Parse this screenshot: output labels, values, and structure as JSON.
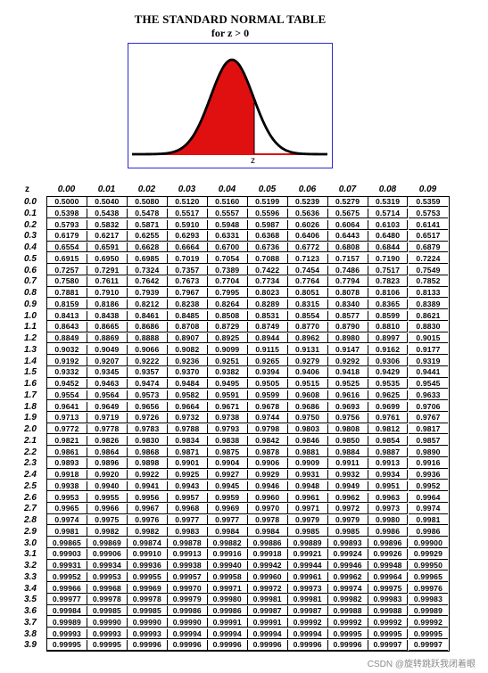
{
  "title": "THE STANDARD NORMAL TABLE",
  "subtitle": "for z > 0",
  "figure": {
    "axis_marker": "z",
    "shaded_color": "#e01010",
    "curve_color": "#000000",
    "border_color": "#2a2ad0"
  },
  "table": {
    "z_header": "z",
    "columns": [
      "0.00",
      "0.01",
      "0.02",
      "0.03",
      "0.04",
      "0.05",
      "0.06",
      "0.07",
      "0.08",
      "0.09"
    ],
    "rows": [
      {
        "z": "0.0",
        "values": [
          "0.5000",
          "0.5040",
          "0.5080",
          "0.5120",
          "0.5160",
          "0.5199",
          "0.5239",
          "0.5279",
          "0.5319",
          "0.5359"
        ]
      },
      {
        "z": "0.1",
        "values": [
          "0.5398",
          "0.5438",
          "0.5478",
          "0.5517",
          "0.5557",
          "0.5596",
          "0.5636",
          "0.5675",
          "0.5714",
          "0.5753"
        ]
      },
      {
        "z": "0.2",
        "values": [
          "0.5793",
          "0.5832",
          "0.5871",
          "0.5910",
          "0.5948",
          "0.5987",
          "0.6026",
          "0.6064",
          "0.6103",
          "0.6141"
        ]
      },
      {
        "z": "0.3",
        "values": [
          "0.6179",
          "0.6217",
          "0.6255",
          "0.6293",
          "0.6331",
          "0.6368",
          "0.6406",
          "0.6443",
          "0.6480",
          "0.6517"
        ]
      },
      {
        "z": "0.4",
        "values": [
          "0.6554",
          "0.6591",
          "0.6628",
          "0.6664",
          "0.6700",
          "0.6736",
          "0.6772",
          "0.6808",
          "0.6844",
          "0.6879"
        ]
      },
      {
        "z": "0.5",
        "values": [
          "0.6915",
          "0.6950",
          "0.6985",
          "0.7019",
          "0.7054",
          "0.7088",
          "0.7123",
          "0.7157",
          "0.7190",
          "0.7224"
        ]
      },
      {
        "z": "0.6",
        "values": [
          "0.7257",
          "0.7291",
          "0.7324",
          "0.7357",
          "0.7389",
          "0.7422",
          "0.7454",
          "0.7486",
          "0.7517",
          "0.7549"
        ]
      },
      {
        "z": "0.7",
        "values": [
          "0.7580",
          "0.7611",
          "0.7642",
          "0.7673",
          "0.7704",
          "0.7734",
          "0.7764",
          "0.7794",
          "0.7823",
          "0.7852"
        ]
      },
      {
        "z": "0.8",
        "values": [
          "0.7881",
          "0.7910",
          "0.7939",
          "0.7967",
          "0.7995",
          "0.8023",
          "0.8051",
          "0.8078",
          "0.8106",
          "0.8133"
        ]
      },
      {
        "z": "0.9",
        "values": [
          "0.8159",
          "0.8186",
          "0.8212",
          "0.8238",
          "0.8264",
          "0.8289",
          "0.8315",
          "0.8340",
          "0.8365",
          "0.8389"
        ]
      },
      {
        "z": "1.0",
        "values": [
          "0.8413",
          "0.8438",
          "0.8461",
          "0.8485",
          "0.8508",
          "0.8531",
          "0.8554",
          "0.8577",
          "0.8599",
          "0.8621"
        ]
      },
      {
        "z": "1.1",
        "values": [
          "0.8643",
          "0.8665",
          "0.8686",
          "0.8708",
          "0.8729",
          "0.8749",
          "0.8770",
          "0.8790",
          "0.8810",
          "0.8830"
        ]
      },
      {
        "z": "1.2",
        "values": [
          "0.8849",
          "0.8869",
          "0.8888",
          "0.8907",
          "0.8925",
          "0.8944",
          "0.8962",
          "0.8980",
          "0.8997",
          "0.9015"
        ]
      },
      {
        "z": "1.3",
        "values": [
          "0.9032",
          "0.9049",
          "0.9066",
          "0.9082",
          "0.9099",
          "0.9115",
          "0.9131",
          "0.9147",
          "0.9162",
          "0.9177"
        ]
      },
      {
        "z": "1.4",
        "values": [
          "0.9192",
          "0.9207",
          "0.9222",
          "0.9236",
          "0.9251",
          "0.9265",
          "0.9279",
          "0.9292",
          "0.9306",
          "0.9319"
        ]
      },
      {
        "z": "1.5",
        "values": [
          "0.9332",
          "0.9345",
          "0.9357",
          "0.9370",
          "0.9382",
          "0.9394",
          "0.9406",
          "0.9418",
          "0.9429",
          "0.9441"
        ]
      },
      {
        "z": "1.6",
        "values": [
          "0.9452",
          "0.9463",
          "0.9474",
          "0.9484",
          "0.9495",
          "0.9505",
          "0.9515",
          "0.9525",
          "0.9535",
          "0.9545"
        ]
      },
      {
        "z": "1.7",
        "values": [
          "0.9554",
          "0.9564",
          "0.9573",
          "0.9582",
          "0.9591",
          "0.9599",
          "0.9608",
          "0.9616",
          "0.9625",
          "0.9633"
        ]
      },
      {
        "z": "1.8",
        "values": [
          "0.9641",
          "0.9649",
          "0.9656",
          "0.9664",
          "0.9671",
          "0.9678",
          "0.9686",
          "0.9693",
          "0.9699",
          "0.9706"
        ]
      },
      {
        "z": "1.9",
        "values": [
          "0.9713",
          "0.9719",
          "0.9726",
          "0.9732",
          "0.9738",
          "0.9744",
          "0.9750",
          "0.9756",
          "0.9761",
          "0.9767"
        ]
      },
      {
        "z": "2.0",
        "values": [
          "0.9772",
          "0.9778",
          "0.9783",
          "0.9788",
          "0.9793",
          "0.9798",
          "0.9803",
          "0.9808",
          "0.9812",
          "0.9817"
        ]
      },
      {
        "z": "2.1",
        "values": [
          "0.9821",
          "0.9826",
          "0.9830",
          "0.9834",
          "0.9838",
          "0.9842",
          "0.9846",
          "0.9850",
          "0.9854",
          "0.9857"
        ]
      },
      {
        "z": "2.2",
        "values": [
          "0.9861",
          "0.9864",
          "0.9868",
          "0.9871",
          "0.9875",
          "0.9878",
          "0.9881",
          "0.9884",
          "0.9887",
          "0.9890"
        ]
      },
      {
        "z": "2.3",
        "values": [
          "0.9893",
          "0.9896",
          "0.9898",
          "0.9901",
          "0.9904",
          "0.9906",
          "0.9909",
          "0.9911",
          "0.9913",
          "0.9916"
        ]
      },
      {
        "z": "2.4",
        "values": [
          "0.9918",
          "0.9920",
          "0.9922",
          "0.9925",
          "0.9927",
          "0.9929",
          "0.9931",
          "0.9932",
          "0.9934",
          "0.9936"
        ]
      },
      {
        "z": "2.5",
        "values": [
          "0.9938",
          "0.9940",
          "0.9941",
          "0.9943",
          "0.9945",
          "0.9946",
          "0.9948",
          "0.9949",
          "0.9951",
          "0.9952"
        ]
      },
      {
        "z": "2.6",
        "values": [
          "0.9953",
          "0.9955",
          "0.9956",
          "0.9957",
          "0.9959",
          "0.9960",
          "0.9961",
          "0.9962",
          "0.9963",
          "0.9964"
        ]
      },
      {
        "z": "2.7",
        "values": [
          "0.9965",
          "0.9966",
          "0.9967",
          "0.9968",
          "0.9969",
          "0.9970",
          "0.9971",
          "0.9972",
          "0.9973",
          "0.9974"
        ]
      },
      {
        "z": "2.8",
        "values": [
          "0.9974",
          "0.9975",
          "0.9976",
          "0.9977",
          "0.9977",
          "0.9978",
          "0.9979",
          "0.9979",
          "0.9980",
          "0.9981"
        ]
      },
      {
        "z": "2.9",
        "values": [
          "0.9981",
          "0.9982",
          "0.9982",
          "0.9983",
          "0.9984",
          "0.9984",
          "0.9985",
          "0.9985",
          "0.9986",
          "0.9986"
        ]
      },
      {
        "z": "3.0",
        "values": [
          "0.99865",
          "0.99869",
          "0.99874",
          "0.99878",
          "0.99882",
          "0.99886",
          "0.99889",
          "0.99893",
          "0.99896",
          "0.99900"
        ]
      },
      {
        "z": "3.1",
        "values": [
          "0.99903",
          "0.99906",
          "0.99910",
          "0.99913",
          "0.99916",
          "0.99918",
          "0.99921",
          "0.99924",
          "0.99926",
          "0.99929"
        ]
      },
      {
        "z": "3.2",
        "values": [
          "0.99931",
          "0.99934",
          "0.99936",
          "0.99938",
          "0.99940",
          "0.99942",
          "0.99944",
          "0.99946",
          "0.99948",
          "0.99950"
        ]
      },
      {
        "z": "3.3",
        "values": [
          "0.99952",
          "0.99953",
          "0.99955",
          "0.99957",
          "0.99958",
          "0.99960",
          "0.99961",
          "0.99962",
          "0.99964",
          "0.99965"
        ]
      },
      {
        "z": "3.4",
        "values": [
          "0.99966",
          "0.99968",
          "0.99969",
          "0.99970",
          "0.99971",
          "0.99972",
          "0.99973",
          "0.99974",
          "0.99975",
          "0.99976"
        ]
      },
      {
        "z": "3.5",
        "values": [
          "0.99977",
          "0.99978",
          "0.99978",
          "0.99979",
          "0.99980",
          "0.99981",
          "0.99981",
          "0.99982",
          "0.99983",
          "0.99983"
        ]
      },
      {
        "z": "3.6",
        "values": [
          "0.99984",
          "0.99985",
          "0.99985",
          "0.99986",
          "0.99986",
          "0.99987",
          "0.99987",
          "0.99988",
          "0.99988",
          "0.99989"
        ]
      },
      {
        "z": "3.7",
        "values": [
          "0.99989",
          "0.99990",
          "0.99990",
          "0.99990",
          "0.99991",
          "0.99991",
          "0.99992",
          "0.99992",
          "0.99992",
          "0.99992"
        ]
      },
      {
        "z": "3.8",
        "values": [
          "0.99993",
          "0.99993",
          "0.99993",
          "0.99994",
          "0.99994",
          "0.99994",
          "0.99994",
          "0.99995",
          "0.99995",
          "0.99995"
        ]
      },
      {
        "z": "3.9",
        "values": [
          "0.99995",
          "0.99995",
          "0.99996",
          "0.99996",
          "0.99996",
          "0.99996",
          "0.99996",
          "0.99996",
          "0.99997",
          "0.99997"
        ]
      }
    ]
  },
  "watermark": "CSDN @旋转跳跃我闭着眼"
}
